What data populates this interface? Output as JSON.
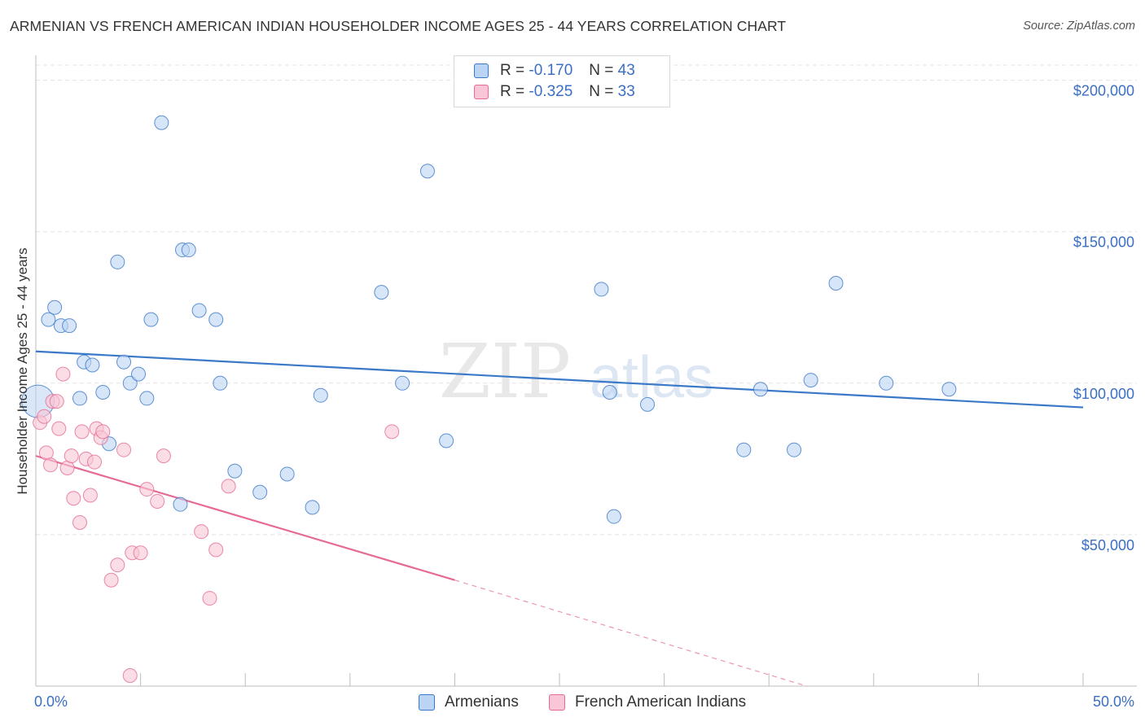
{
  "title": "ARMENIAN VS FRENCH AMERICAN INDIAN HOUSEHOLDER INCOME AGES 25 - 44 YEARS CORRELATION CHART",
  "source": "Source: ZipAtlas.com",
  "watermark": {
    "zip": "ZIP",
    "atlas": "atlas"
  },
  "legend": {
    "rows": [
      {
        "r_label": "R =",
        "r_value": "-0.170",
        "n_label": "N =",
        "n_value": "43",
        "color": "#aac8f0"
      },
      {
        "r_label": "R =",
        "r_value": "-0.325",
        "n_label": "N =",
        "n_value": "33",
        "color": "#f6b8cc"
      }
    ]
  },
  "bottom_legend": {
    "series1": "Armenians",
    "series2": "French American Indians"
  },
  "x_axis": {
    "min_label": "0.0%",
    "max_label": "50.0%"
  },
  "colors": {
    "blue": "#3a78c8",
    "blue_fill": "#bcd4f3",
    "pink": "#e56b94",
    "pink_fill": "#f8c6d6",
    "tick_text": "#3a6fc4"
  },
  "chart_data": {
    "type": "scatter",
    "title": "ARMENIAN VS FRENCH AMERICAN INDIAN HOUSEHOLDER INCOME AGES 25 - 44 YEARS CORRELATION CHART",
    "xlabel": "",
    "ylabel": "Householder Income Ages 25 - 44 years",
    "xlim": [
      0,
      50
    ],
    "ylim": [
      0,
      205000
    ],
    "y_ticks": [
      {
        "value": 50000,
        "label": "$50,000"
      },
      {
        "value": 100000,
        "label": "$100,000"
      },
      {
        "value": 150000,
        "label": "$150,000"
      },
      {
        "value": 200000,
        "label": "$200,000"
      }
    ],
    "x_tick_count": 11,
    "grid": true,
    "series": [
      {
        "name": "Armenians",
        "color": "#3a78c8",
        "points": [
          [
            0.1,
            94000
          ],
          [
            0.6,
            121000
          ],
          [
            0.9,
            125000
          ],
          [
            1.2,
            119000
          ],
          [
            1.6,
            119000
          ],
          [
            2.1,
            95000
          ],
          [
            2.3,
            107000
          ],
          [
            2.7,
            106000
          ],
          [
            3.2,
            97000
          ],
          [
            3.5,
            80000
          ],
          [
            3.9,
            140000
          ],
          [
            4.2,
            107000
          ],
          [
            4.5,
            100000
          ],
          [
            4.9,
            103000
          ],
          [
            5.3,
            95000
          ],
          [
            5.5,
            121000
          ],
          [
            6.0,
            186000
          ],
          [
            6.9,
            60000
          ],
          [
            7.0,
            144000
          ],
          [
            7.3,
            144000
          ],
          [
            7.8,
            124000
          ],
          [
            8.6,
            121000
          ],
          [
            8.8,
            100000
          ],
          [
            9.5,
            71000
          ],
          [
            10.7,
            64000
          ],
          [
            12.0,
            70000
          ],
          [
            13.2,
            59000
          ],
          [
            13.6,
            96000
          ],
          [
            16.5,
            130000
          ],
          [
            17.5,
            100000
          ],
          [
            18.7,
            170000
          ],
          [
            19.6,
            81000
          ],
          [
            27.0,
            131000
          ],
          [
            27.4,
            97000
          ],
          [
            27.6,
            56000
          ],
          [
            29.2,
            93000
          ],
          [
            33.8,
            78000
          ],
          [
            34.6,
            98000
          ],
          [
            36.2,
            78000
          ],
          [
            37.0,
            101000
          ],
          [
            38.2,
            133000
          ],
          [
            40.6,
            100000
          ],
          [
            43.6,
            98000
          ]
        ],
        "trend": {
          "x0": 0,
          "y0": 110500,
          "x1": 50,
          "y1": 92000
        }
      },
      {
        "name": "French American Indians",
        "color": "#e56b94",
        "points": [
          [
            0.2,
            87000
          ],
          [
            0.4,
            89000
          ],
          [
            0.5,
            77000
          ],
          [
            0.7,
            73000
          ],
          [
            0.8,
            94000
          ],
          [
            1.0,
            94000
          ],
          [
            1.1,
            85000
          ],
          [
            1.3,
            103000
          ],
          [
            1.5,
            72000
          ],
          [
            1.7,
            76000
          ],
          [
            1.8,
            62000
          ],
          [
            2.1,
            54000
          ],
          [
            2.2,
            84000
          ],
          [
            2.4,
            75000
          ],
          [
            2.6,
            63000
          ],
          [
            2.8,
            74000
          ],
          [
            2.9,
            85000
          ],
          [
            3.1,
            82000
          ],
          [
            3.2,
            84000
          ],
          [
            3.6,
            35000
          ],
          [
            3.9,
            40000
          ],
          [
            4.2,
            78000
          ],
          [
            4.5,
            3500
          ],
          [
            4.6,
            44000
          ],
          [
            5.0,
            44000
          ],
          [
            5.3,
            65000
          ],
          [
            5.8,
            61000
          ],
          [
            6.1,
            76000
          ],
          [
            7.9,
            51000
          ],
          [
            8.3,
            29000
          ],
          [
            8.6,
            45000
          ],
          [
            9.2,
            66000
          ],
          [
            17.0,
            84000
          ]
        ],
        "trend": {
          "x0": 0,
          "y0": 76000,
          "x1": 20,
          "y1": 35000
        },
        "trend_extension": {
          "x0": 20,
          "y0": 35000,
          "x1": 36.8,
          "y1": 0
        }
      }
    ]
  }
}
